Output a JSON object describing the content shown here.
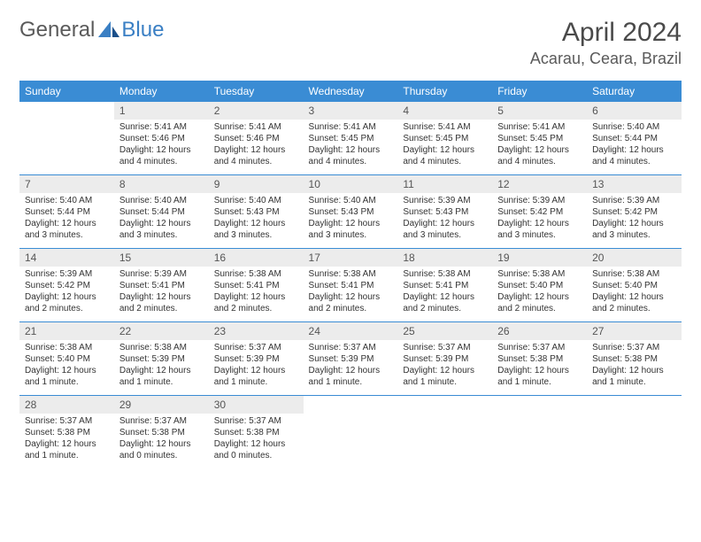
{
  "logo": {
    "text1": "General",
    "text2": "Blue"
  },
  "title": "April 2024",
  "location": "Acarau, Ceara, Brazil",
  "header_color": "#3a8cd4",
  "daynum_bg": "#ececec",
  "separator_color": "#3a8cd4",
  "day_names": [
    "Sunday",
    "Monday",
    "Tuesday",
    "Wednesday",
    "Thursday",
    "Friday",
    "Saturday"
  ],
  "weeks": [
    [
      null,
      {
        "n": "1",
        "sr": "Sunrise: 5:41 AM",
        "ss": "Sunset: 5:46 PM",
        "dl": "Daylight: 12 hours and 4 minutes."
      },
      {
        "n": "2",
        "sr": "Sunrise: 5:41 AM",
        "ss": "Sunset: 5:46 PM",
        "dl": "Daylight: 12 hours and 4 minutes."
      },
      {
        "n": "3",
        "sr": "Sunrise: 5:41 AM",
        "ss": "Sunset: 5:45 PM",
        "dl": "Daylight: 12 hours and 4 minutes."
      },
      {
        "n": "4",
        "sr": "Sunrise: 5:41 AM",
        "ss": "Sunset: 5:45 PM",
        "dl": "Daylight: 12 hours and 4 minutes."
      },
      {
        "n": "5",
        "sr": "Sunrise: 5:41 AM",
        "ss": "Sunset: 5:45 PM",
        "dl": "Daylight: 12 hours and 4 minutes."
      },
      {
        "n": "6",
        "sr": "Sunrise: 5:40 AM",
        "ss": "Sunset: 5:44 PM",
        "dl": "Daylight: 12 hours and 4 minutes."
      }
    ],
    [
      {
        "n": "7",
        "sr": "Sunrise: 5:40 AM",
        "ss": "Sunset: 5:44 PM",
        "dl": "Daylight: 12 hours and 3 minutes."
      },
      {
        "n": "8",
        "sr": "Sunrise: 5:40 AM",
        "ss": "Sunset: 5:44 PM",
        "dl": "Daylight: 12 hours and 3 minutes."
      },
      {
        "n": "9",
        "sr": "Sunrise: 5:40 AM",
        "ss": "Sunset: 5:43 PM",
        "dl": "Daylight: 12 hours and 3 minutes."
      },
      {
        "n": "10",
        "sr": "Sunrise: 5:40 AM",
        "ss": "Sunset: 5:43 PM",
        "dl": "Daylight: 12 hours and 3 minutes."
      },
      {
        "n": "11",
        "sr": "Sunrise: 5:39 AM",
        "ss": "Sunset: 5:43 PM",
        "dl": "Daylight: 12 hours and 3 minutes."
      },
      {
        "n": "12",
        "sr": "Sunrise: 5:39 AM",
        "ss": "Sunset: 5:42 PM",
        "dl": "Daylight: 12 hours and 3 minutes."
      },
      {
        "n": "13",
        "sr": "Sunrise: 5:39 AM",
        "ss": "Sunset: 5:42 PM",
        "dl": "Daylight: 12 hours and 3 minutes."
      }
    ],
    [
      {
        "n": "14",
        "sr": "Sunrise: 5:39 AM",
        "ss": "Sunset: 5:42 PM",
        "dl": "Daylight: 12 hours and 2 minutes."
      },
      {
        "n": "15",
        "sr": "Sunrise: 5:39 AM",
        "ss": "Sunset: 5:41 PM",
        "dl": "Daylight: 12 hours and 2 minutes."
      },
      {
        "n": "16",
        "sr": "Sunrise: 5:38 AM",
        "ss": "Sunset: 5:41 PM",
        "dl": "Daylight: 12 hours and 2 minutes."
      },
      {
        "n": "17",
        "sr": "Sunrise: 5:38 AM",
        "ss": "Sunset: 5:41 PM",
        "dl": "Daylight: 12 hours and 2 minutes."
      },
      {
        "n": "18",
        "sr": "Sunrise: 5:38 AM",
        "ss": "Sunset: 5:41 PM",
        "dl": "Daylight: 12 hours and 2 minutes."
      },
      {
        "n": "19",
        "sr": "Sunrise: 5:38 AM",
        "ss": "Sunset: 5:40 PM",
        "dl": "Daylight: 12 hours and 2 minutes."
      },
      {
        "n": "20",
        "sr": "Sunrise: 5:38 AM",
        "ss": "Sunset: 5:40 PM",
        "dl": "Daylight: 12 hours and 2 minutes."
      }
    ],
    [
      {
        "n": "21",
        "sr": "Sunrise: 5:38 AM",
        "ss": "Sunset: 5:40 PM",
        "dl": "Daylight: 12 hours and 1 minute."
      },
      {
        "n": "22",
        "sr": "Sunrise: 5:38 AM",
        "ss": "Sunset: 5:39 PM",
        "dl": "Daylight: 12 hours and 1 minute."
      },
      {
        "n": "23",
        "sr": "Sunrise: 5:37 AM",
        "ss": "Sunset: 5:39 PM",
        "dl": "Daylight: 12 hours and 1 minute."
      },
      {
        "n": "24",
        "sr": "Sunrise: 5:37 AM",
        "ss": "Sunset: 5:39 PM",
        "dl": "Daylight: 12 hours and 1 minute."
      },
      {
        "n": "25",
        "sr": "Sunrise: 5:37 AM",
        "ss": "Sunset: 5:39 PM",
        "dl": "Daylight: 12 hours and 1 minute."
      },
      {
        "n": "26",
        "sr": "Sunrise: 5:37 AM",
        "ss": "Sunset: 5:38 PM",
        "dl": "Daylight: 12 hours and 1 minute."
      },
      {
        "n": "27",
        "sr": "Sunrise: 5:37 AM",
        "ss": "Sunset: 5:38 PM",
        "dl": "Daylight: 12 hours and 1 minute."
      }
    ],
    [
      {
        "n": "28",
        "sr": "Sunrise: 5:37 AM",
        "ss": "Sunset: 5:38 PM",
        "dl": "Daylight: 12 hours and 1 minute."
      },
      {
        "n": "29",
        "sr": "Sunrise: 5:37 AM",
        "ss": "Sunset: 5:38 PM",
        "dl": "Daylight: 12 hours and 0 minutes."
      },
      {
        "n": "30",
        "sr": "Sunrise: 5:37 AM",
        "ss": "Sunset: 5:38 PM",
        "dl": "Daylight: 12 hours and 0 minutes."
      },
      null,
      null,
      null,
      null
    ]
  ]
}
